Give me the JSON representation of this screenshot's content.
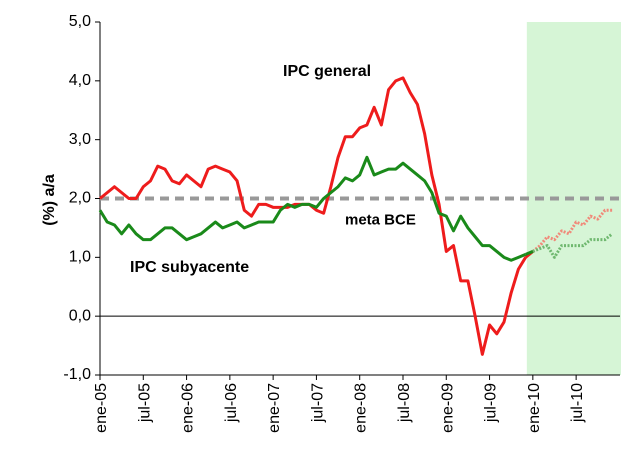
{
  "chart_data": {
    "type": "line",
    "y_label": "(%) a/a",
    "categories": [
      "ene-05",
      null,
      null,
      null,
      null,
      null,
      "jul-05",
      null,
      null,
      null,
      null,
      null,
      "ene-06",
      null,
      null,
      null,
      null,
      null,
      "jul-06",
      null,
      null,
      null,
      null,
      null,
      "ene-07",
      null,
      null,
      null,
      null,
      null,
      "jul-07",
      null,
      null,
      null,
      null,
      null,
      "ene-08",
      null,
      null,
      null,
      null,
      null,
      "jul-08",
      null,
      null,
      null,
      null,
      null,
      "ene-09",
      null,
      null,
      null,
      null,
      null,
      "jul-09",
      null,
      null,
      null,
      null,
      null,
      "ene-10",
      null,
      null,
      null,
      null,
      null,
      "jul-10",
      null,
      null,
      null,
      null,
      null
    ],
    "series": [
      {
        "name": "IPC general",
        "color": "#ee1c1c",
        "forecast_color": "#f08a7a",
        "values": [
          2.0,
          2.1,
          2.2,
          2.1,
          2.0,
          2.0,
          2.2,
          2.3,
          2.55,
          2.5,
          2.3,
          2.25,
          2.4,
          2.3,
          2.2,
          2.5,
          2.55,
          2.5,
          2.45,
          2.3,
          1.8,
          1.7,
          1.9,
          1.9,
          1.85,
          1.85,
          1.85,
          1.9,
          1.9,
          1.9,
          1.8,
          1.75,
          2.2,
          2.7,
          3.05,
          3.05,
          3.2,
          3.25,
          3.55,
          3.25,
          3.85,
          4.0,
          4.05,
          3.8,
          3.6,
          3.1,
          2.4,
          1.9,
          1.1,
          1.2,
          0.6,
          0.6,
          0.0,
          -0.65,
          -0.15,
          -0.3,
          -0.1,
          0.4,
          0.8,
          1.0,
          1.1,
          1.2,
          1.35,
          1.3,
          1.45,
          1.4,
          1.6,
          1.55,
          1.7,
          1.65,
          1.8,
          1.8
        ]
      },
      {
        "name": "IPC subyacente",
        "color": "#1a8a1a",
        "forecast_color": "#6fb86f",
        "values": [
          1.8,
          1.6,
          1.55,
          1.4,
          1.55,
          1.4,
          1.3,
          1.3,
          1.4,
          1.5,
          1.5,
          1.4,
          1.3,
          1.35,
          1.4,
          1.5,
          1.6,
          1.5,
          1.55,
          1.6,
          1.5,
          1.55,
          1.6,
          1.6,
          1.6,
          1.8,
          1.9,
          1.85,
          1.9,
          1.9,
          1.85,
          2.0,
          2.1,
          2.2,
          2.35,
          2.3,
          2.4,
          2.7,
          2.4,
          2.45,
          2.5,
          2.5,
          2.6,
          2.5,
          2.4,
          2.3,
          2.1,
          1.75,
          1.7,
          1.45,
          1.7,
          1.5,
          1.35,
          1.2,
          1.2,
          1.1,
          1.0,
          0.95,
          1.0,
          1.05,
          1.1,
          1.15,
          1.2,
          1.0,
          1.2,
          1.2,
          1.2,
          1.2,
          1.3,
          1.3,
          1.3,
          1.4
        ]
      }
    ],
    "target": {
      "label": "meta BCE",
      "value": 2.0,
      "color": "#999999"
    },
    "forecast_start": 60,
    "shade_color": "#ccf2cc",
    "ylim": [
      -1.0,
      5.0
    ],
    "yticks": [
      {
        "value": -1.0,
        "label": "-1,0"
      },
      {
        "value": 0.0,
        "label": "0,0"
      },
      {
        "value": 1.0,
        "label": "1,0"
      },
      {
        "value": 2.0,
        "label": "2,0"
      },
      {
        "value": 3.0,
        "label": "3,0"
      },
      {
        "value": 4.0,
        "label": "4,0"
      },
      {
        "value": 5.0,
        "label": "5,0"
      }
    ]
  }
}
